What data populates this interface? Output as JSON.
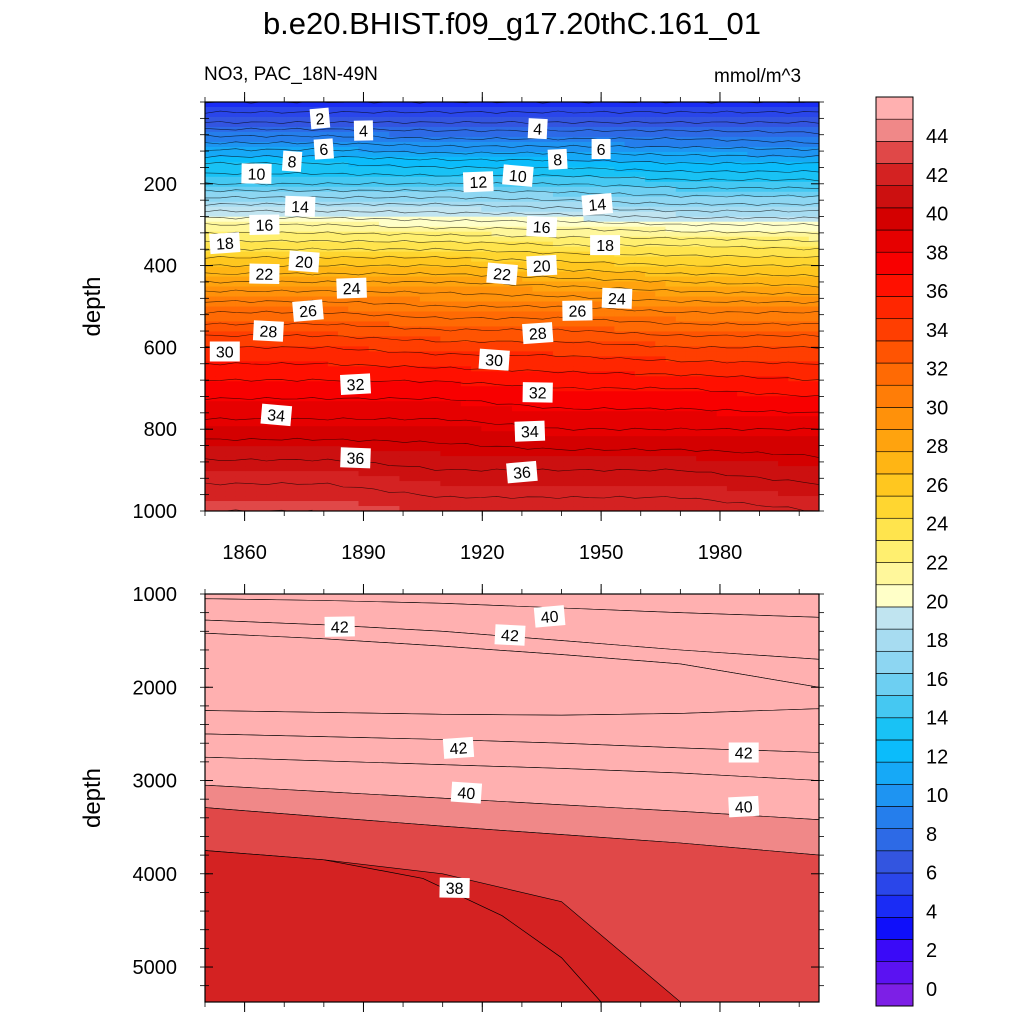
{
  "figure": {
    "title": "b.e20.BHIST.f09_g17.20thC.161_01",
    "subtitle_left": "NO3, PAC_18N-49N",
    "subtitle_right": "mmol/m^3"
  },
  "chart_data": [
    {
      "type": "heatmap",
      "panel": "upper",
      "x": [
        1850,
        1880,
        1910,
        1940,
        1970,
        2005
      ],
      "xticklabels": [
        "1860",
        "1890",
        "1920",
        "1950",
        "1980"
      ],
      "xticks": [
        1860,
        1890,
        1920,
        1950,
        1980
      ],
      "xlim": [
        1850,
        2005
      ],
      "ylabel": "depth",
      "ylim": [
        0,
        1000
      ],
      "yreversed": true,
      "yticks": [
        200,
        400,
        600,
        800,
        1000
      ],
      "yticklabels": [
        "200",
        "400",
        "600",
        "800",
        "1000"
      ],
      "depth_levels": [
        0,
        50,
        100,
        150,
        200,
        250,
        300,
        350,
        400,
        450,
        500,
        600,
        700,
        800,
        900,
        1000
      ],
      "values_by_depth": [
        [
          1,
          1,
          1,
          1,
          1,
          1
        ],
        [
          3,
          3,
          3,
          3,
          3,
          3
        ],
        [
          6,
          6,
          5.5,
          5.5,
          5.5,
          5
        ],
        [
          9,
          9,
          8.5,
          8.5,
          8,
          8
        ],
        [
          11,
          11,
          11,
          11,
          10.5,
          10.5
        ],
        [
          14,
          14,
          14,
          13.5,
          13,
          13
        ],
        [
          17,
          17,
          16.5,
          16.5,
          16,
          16
        ],
        [
          19.5,
          19.5,
          19.5,
          19,
          19,
          18.5
        ],
        [
          22,
          22,
          22,
          21.5,
          21,
          21
        ],
        [
          24.5,
          24.5,
          24.5,
          24,
          23.5,
          23
        ],
        [
          26.5,
          26.5,
          26,
          26,
          25.5,
          25.5
        ],
        [
          30,
          30,
          29.5,
          29.5,
          29,
          29
        ],
        [
          32.5,
          32.5,
          32.5,
          32,
          32,
          31.5
        ],
        [
          34.5,
          34.5,
          34.5,
          34,
          34,
          34
        ],
        [
          36.5,
          36.5,
          36,
          36,
          36,
          35.5
        ],
        [
          38,
          38,
          37.5,
          37.5,
          37.5,
          37
        ]
      ],
      "contour_labels": [
        {
          "text": "2",
          "x": 1879,
          "depth": 40
        },
        {
          "text": "4",
          "x": 1890,
          "depth": 70
        },
        {
          "text": "4",
          "x": 1934,
          "depth": 65
        },
        {
          "text": "6",
          "x": 1880,
          "depth": 115
        },
        {
          "text": "6",
          "x": 1950,
          "depth": 115
        },
        {
          "text": "8",
          "x": 1872,
          "depth": 145
        },
        {
          "text": "8",
          "x": 1939,
          "depth": 140
        },
        {
          "text": "10",
          "x": 1863,
          "depth": 175
        },
        {
          "text": "10",
          "x": 1929,
          "depth": 180
        },
        {
          "text": "12",
          "x": 1919,
          "depth": 195
        },
        {
          "text": "14",
          "x": 1874,
          "depth": 255
        },
        {
          "text": "14",
          "x": 1949,
          "depth": 250
        },
        {
          "text": "16",
          "x": 1865,
          "depth": 300
        },
        {
          "text": "16",
          "x": 1935,
          "depth": 305
        },
        {
          "text": "18",
          "x": 1855,
          "depth": 345
        },
        {
          "text": "18",
          "x": 1951,
          "depth": 350
        },
        {
          "text": "20",
          "x": 1875,
          "depth": 390
        },
        {
          "text": "20",
          "x": 1935,
          "depth": 400
        },
        {
          "text": "22",
          "x": 1865,
          "depth": 420
        },
        {
          "text": "22",
          "x": 1925,
          "depth": 420
        },
        {
          "text": "24",
          "x": 1887,
          "depth": 455
        },
        {
          "text": "24",
          "x": 1954,
          "depth": 480
        },
        {
          "text": "26",
          "x": 1876,
          "depth": 510
        },
        {
          "text": "26",
          "x": 1944,
          "depth": 510
        },
        {
          "text": "28",
          "x": 1866,
          "depth": 560
        },
        {
          "text": "28",
          "x": 1934,
          "depth": 565
        },
        {
          "text": "30",
          "x": 1855,
          "depth": 610
        },
        {
          "text": "30",
          "x": 1923,
          "depth": 630
        },
        {
          "text": "32",
          "x": 1888,
          "depth": 690
        },
        {
          "text": "32",
          "x": 1934,
          "depth": 710
        },
        {
          "text": "34",
          "x": 1868,
          "depth": 765
        },
        {
          "text": "34",
          "x": 1932,
          "depth": 805
        },
        {
          "text": "36",
          "x": 1888,
          "depth": 870
        },
        {
          "text": "36",
          "x": 1930,
          "depth": 905
        }
      ]
    },
    {
      "type": "heatmap",
      "panel": "lower",
      "x": [
        1850,
        1880,
        1910,
        1940,
        1970,
        2005
      ],
      "xticks": [
        1860,
        1890,
        1920,
        1950,
        1980
      ],
      "xlim": [
        1850,
        2005
      ],
      "ylabel": "depth",
      "ylim": [
        1000,
        5375
      ],
      "yreversed": true,
      "yticks": [
        1000,
        2000,
        3000,
        4000,
        5000
      ],
      "yticklabels": [
        "1000",
        "2000",
        "3000",
        "4000",
        "5000"
      ],
      "bands": [
        {
          "level": 40.5,
          "top": [
            1000,
            1000,
            1000,
            1000,
            1000,
            1000
          ],
          "bottom": [
            1050,
            1070,
            1100,
            1150,
            1200,
            1250
          ]
        },
        {
          "level": 41.5,
          "top": [
            1050,
            1070,
            1100,
            1150,
            1200,
            1250
          ],
          "bottom": [
            1280,
            1330,
            1400,
            1500,
            1600,
            1700
          ]
        },
        {
          "level": 42.5,
          "top": [
            1280,
            1330,
            1400,
            1500,
            1600,
            1700
          ],
          "bottom": [
            1420,
            1480,
            1560,
            1650,
            1750,
            2000
          ]
        },
        {
          "level": 43.5,
          "top": [
            1420,
            1480,
            1560,
            1650,
            1750,
            2000
          ],
          "bottom": [
            2250,
            2270,
            2290,
            2300,
            2280,
            2230
          ]
        },
        {
          "level": 42.5,
          "top": [
            2250,
            2270,
            2290,
            2300,
            2280,
            2230
          ],
          "bottom": [
            2500,
            2530,
            2560,
            2600,
            2650,
            2700
          ]
        },
        {
          "level": 41.5,
          "top": [
            2500,
            2530,
            2560,
            2600,
            2650,
            2700
          ],
          "bottom": [
            2750,
            2790,
            2830,
            2870,
            2920,
            3000
          ]
        },
        {
          "level": 40.5,
          "top": [
            2750,
            2790,
            2830,
            2870,
            2920,
            3000
          ],
          "bottom": [
            3050,
            3120,
            3190,
            3260,
            3330,
            3420
          ]
        },
        {
          "level": 39.5,
          "top": [
            3050,
            3120,
            3190,
            3260,
            3330,
            3420
          ],
          "bottom": [
            3290,
            3390,
            3490,
            3580,
            3670,
            3800
          ]
        },
        {
          "level": 38.5,
          "top": [
            3290,
            3390,
            3490,
            3580,
            3670,
            3800
          ],
          "bottom": [
            3750,
            3850,
            4000,
            4300,
            5375,
            5375
          ]
        }
      ],
      "deep_region_level": 37.5,
      "deep_boundary": [
        [
          1850,
          3750
        ],
        [
          1880,
          3850
        ],
        [
          1905,
          4050
        ],
        [
          1925,
          4450
        ],
        [
          1940,
          4900
        ],
        [
          1950,
          5375
        ]
      ],
      "contour_labels": [
        {
          "text": "40",
          "x": 1937,
          "depth": 1240
        },
        {
          "text": "42",
          "x": 1884,
          "depth": 1350
        },
        {
          "text": "42",
          "x": 1927,
          "depth": 1440
        },
        {
          "text": "42",
          "x": 1914,
          "depth": 2650
        },
        {
          "text": "42",
          "x": 1986,
          "depth": 2700
        },
        {
          "text": "40",
          "x": 1916,
          "depth": 3130
        },
        {
          "text": "40",
          "x": 1986,
          "depth": 3280
        },
        {
          "text": "38",
          "x": 1913,
          "depth": 4150
        }
      ]
    }
  ],
  "colorbar": {
    "ticklabels": [
      "0",
      "2",
      "4",
      "6",
      "8",
      "10",
      "12",
      "14",
      "16",
      "18",
      "20",
      "22",
      "24",
      "26",
      "28",
      "30",
      "32",
      "34",
      "36",
      "38",
      "40",
      "42",
      "44"
    ],
    "colors": [
      "#7d1fe6",
      "#5b12f2",
      "#3a0af8",
      "#0f0ffa",
      "#1a2cf5",
      "#2a46ea",
      "#3355e0",
      "#2d6ae6",
      "#257eec",
      "#1e94f2",
      "#16a9f7",
      "#0bbcfb",
      "#19c2f5",
      "#45c8f2",
      "#6dcff2",
      "#8dd6f2",
      "#a7dcf1",
      "#c0e4f0",
      "#ffffc8",
      "#fff79b",
      "#ffef6f",
      "#ffe44d",
      "#ffd630",
      "#ffc71f",
      "#ffb514",
      "#ffa30e",
      "#ff910a",
      "#ff7d07",
      "#ff6a04",
      "#ff5402",
      "#ff3e01",
      "#ff2600",
      "#ff1000",
      "#f80000",
      "#e60000",
      "#d40000",
      "#cc1010",
      "#d42222",
      "#e04848",
      "#f08888",
      "#ffb0b0"
    ]
  }
}
